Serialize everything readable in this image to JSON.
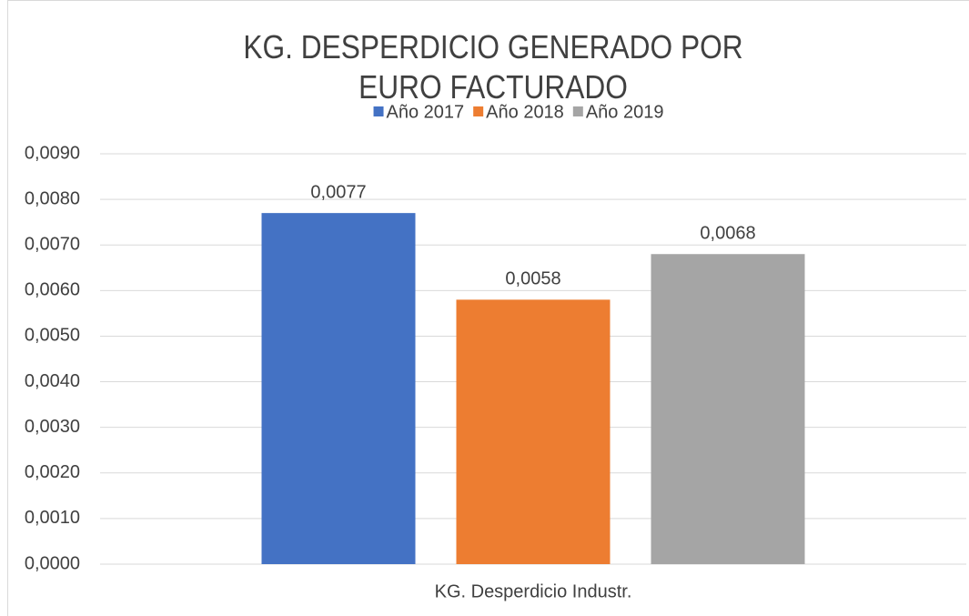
{
  "chart_data": {
    "type": "bar",
    "title": "KG. DESPERDICIO GENERADO POR EURO FACTURADO",
    "categories": [
      "KG. Desperdicio Industr."
    ],
    "series": [
      {
        "name": "Año 2017",
        "color": "#4472c4",
        "values": [
          0.0077
        ],
        "value_labels": [
          "0,0077"
        ]
      },
      {
        "name": "Año 2018",
        "color": "#ed7d31",
        "values": [
          0.0058
        ],
        "value_labels": [
          "0,0058"
        ]
      },
      {
        "name": "Año 2019",
        "color": "#a5a5a5",
        "values": [
          0.0068
        ],
        "value_labels": [
          "0,0068"
        ]
      }
    ],
    "ylim": [
      0,
      0.009
    ],
    "yticks": [
      {
        "value": 0,
        "label": "0,0000"
      },
      {
        "value": 0.001,
        "label": "0,0010"
      },
      {
        "value": 0.002,
        "label": "0,0020"
      },
      {
        "value": 0.003,
        "label": "0,0030"
      },
      {
        "value": 0.004,
        "label": "0,0040"
      },
      {
        "value": 0.005,
        "label": "0,0050"
      },
      {
        "value": 0.006,
        "label": "0,0060"
      },
      {
        "value": 0.007,
        "label": "0,0070"
      },
      {
        "value": 0.008,
        "label": "0,0080"
      },
      {
        "value": 0.009,
        "label": "0,0090"
      }
    ],
    "grid": true,
    "legend": "top"
  }
}
